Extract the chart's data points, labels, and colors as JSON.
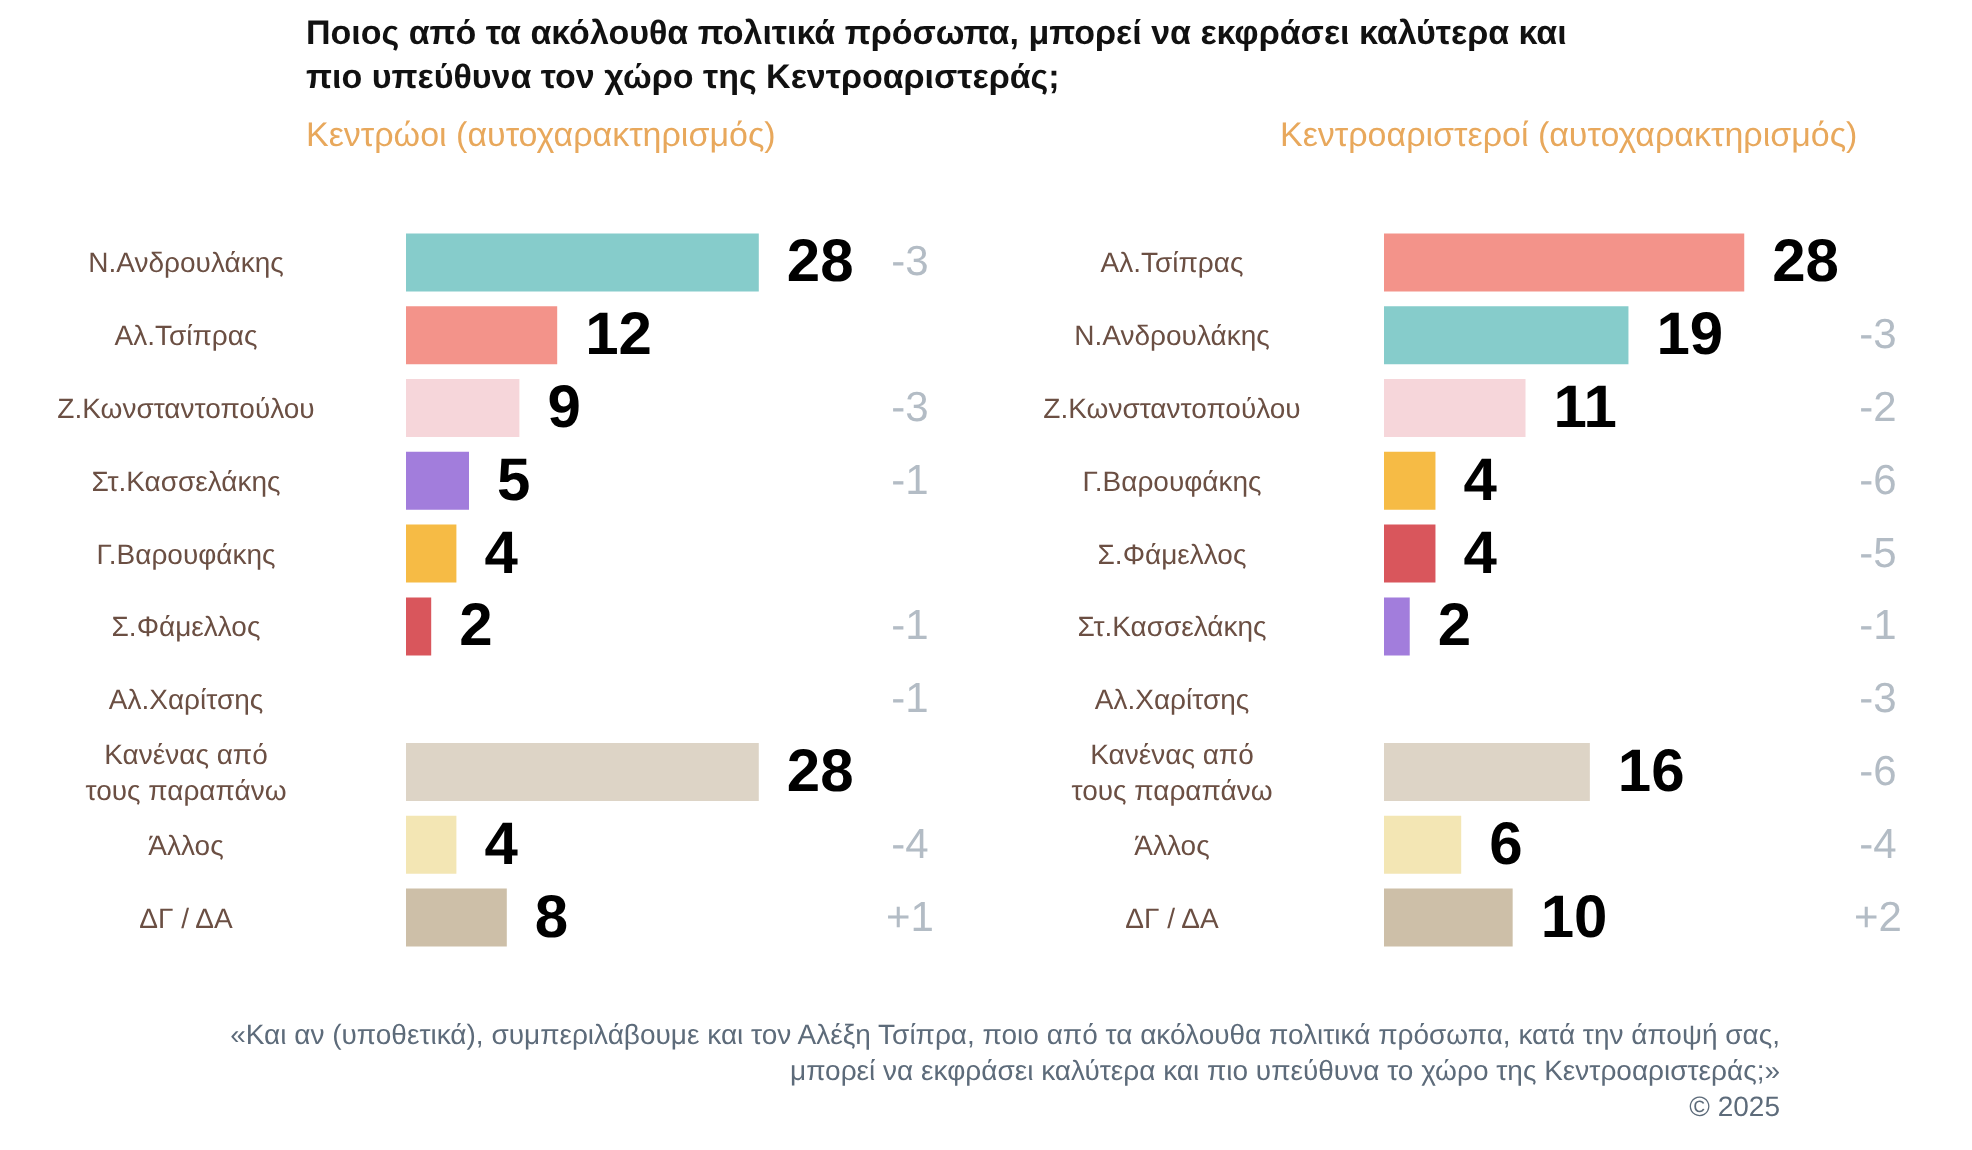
{
  "chart_data": [
    {
      "type": "bar",
      "orientation": "horizontal",
      "title": "Ποιος από τα ακόλουθα πολιτικά πρόσωπα, μπορεί να εκφράσει καλύτερα και πιο υπεύθυνα τον χώρο της Κεντροαριστεράς;",
      "subtitle": "Κεντρώοι  (αυτοχαρακτηρισμός)",
      "categories": [
        "Ν.Ανδρουλάκης",
        "Αλ.Τσίπρας",
        "Ζ.Κωνσταντοπούλου",
        "Στ.Κασσελάκης",
        "Γ.Βαρουφάκης",
        "Σ.Φάμελλος",
        "Αλ.Χαρίτσης",
        "Κανένας από\nτους παραπάνω",
        "Άλλος",
        "ΔΓ / ΔΑ"
      ],
      "values": [
        28,
        12,
        9,
        5,
        4,
        2,
        null,
        28,
        4,
        8
      ],
      "colors": [
        "#86cccb",
        "#f3938a",
        "#f6d6da",
        "#a27ddc",
        "#f6bb45",
        "#d9565c",
        "#f2e4e4",
        "#ddd4c6",
        "#f3e6b4",
        "#cdbfa8"
      ],
      "value_labels": [
        "28",
        "12",
        "9",
        "5",
        "4",
        "2",
        null,
        "28",
        "4",
        "8"
      ],
      "annotations": [
        "-3",
        "-3",
        "-1",
        "-1",
        "-1",
        "-4",
        "+1",
        "«Και αν (υποθετικά), συμπεριλάβουμε και τον Αλέξη Τσίπρα, ποιο από τα ακόλουθα πολιτικά πρόσωπα, κατά την άποψή σας, μπορεί να εκφράσει καλύτερα και πιο υπεύθυνα το χώρο της Κεντροαριστεράς;»",
        "©  2025"
      ]
    },
    {
      "type": "bar",
      "orientation": "horizontal",
      "subtitle": "Κεντροαριστεροί  (αυτοχαρακτηρισμός)",
      "categories": [
        "Αλ.Τσίπρας",
        "Ν.Ανδρουλάκης",
        "Ζ.Κωνσταντοπούλου",
        "Γ.Βαρουφάκης",
        "Σ.Φάμελλος",
        "Στ.Κασσελάκης",
        "Αλ.Χαρίτσης",
        "Κανένας από\nτους παραπάνω",
        "Άλλος",
        "ΔΓ / ΔΑ"
      ],
      "values": [
        28,
        19,
        11,
        4,
        4,
        2,
        null,
        16,
        6,
        10
      ],
      "colors": [
        "#f3938a",
        "#86cccb",
        "#f6d6da",
        "#f6bb45",
        "#d9565c",
        "#a27ddc",
        "#f2e4e4",
        "#ddd4c6",
        "#f3e6b4",
        "#cdbfa8"
      ],
      "value_labels": [
        "28",
        "19",
        "11",
        "4",
        "4",
        "2",
        null,
        "16",
        "6",
        "10"
      ],
      "annotations": [
        "-3",
        "-2",
        "-6",
        "-5",
        "-1",
        "-3",
        "-6",
        "-4",
        "+2"
      ]
    }
  ]
}
